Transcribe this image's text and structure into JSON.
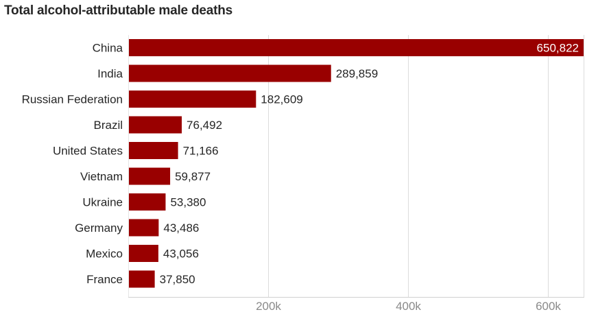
{
  "chart_data": {
    "type": "bar",
    "orientation": "horizontal",
    "title": "Total alcohol-attributable male deaths",
    "categories": [
      "China",
      "India",
      "Russian Federation",
      "Brazil",
      "United States",
      "Vietnam",
      "Ukraine",
      "Germany",
      "Mexico",
      "France"
    ],
    "values": [
      650822,
      289859,
      182609,
      76492,
      71166,
      59877,
      53380,
      43486,
      43056,
      37850
    ],
    "value_labels": [
      "650,822",
      "289,859",
      "182,609",
      "76,492",
      "71,166",
      "59,877",
      "53,380",
      "43,486",
      "43,056",
      "37,850"
    ],
    "x_ticks": [
      200000,
      400000,
      600000
    ],
    "x_tick_labels": [
      "200k",
      "400k",
      "600k"
    ],
    "xlim": [
      0,
      650822
    ],
    "xlabel": "",
    "ylabel": "",
    "grid": true,
    "bar_color": "#990000"
  }
}
